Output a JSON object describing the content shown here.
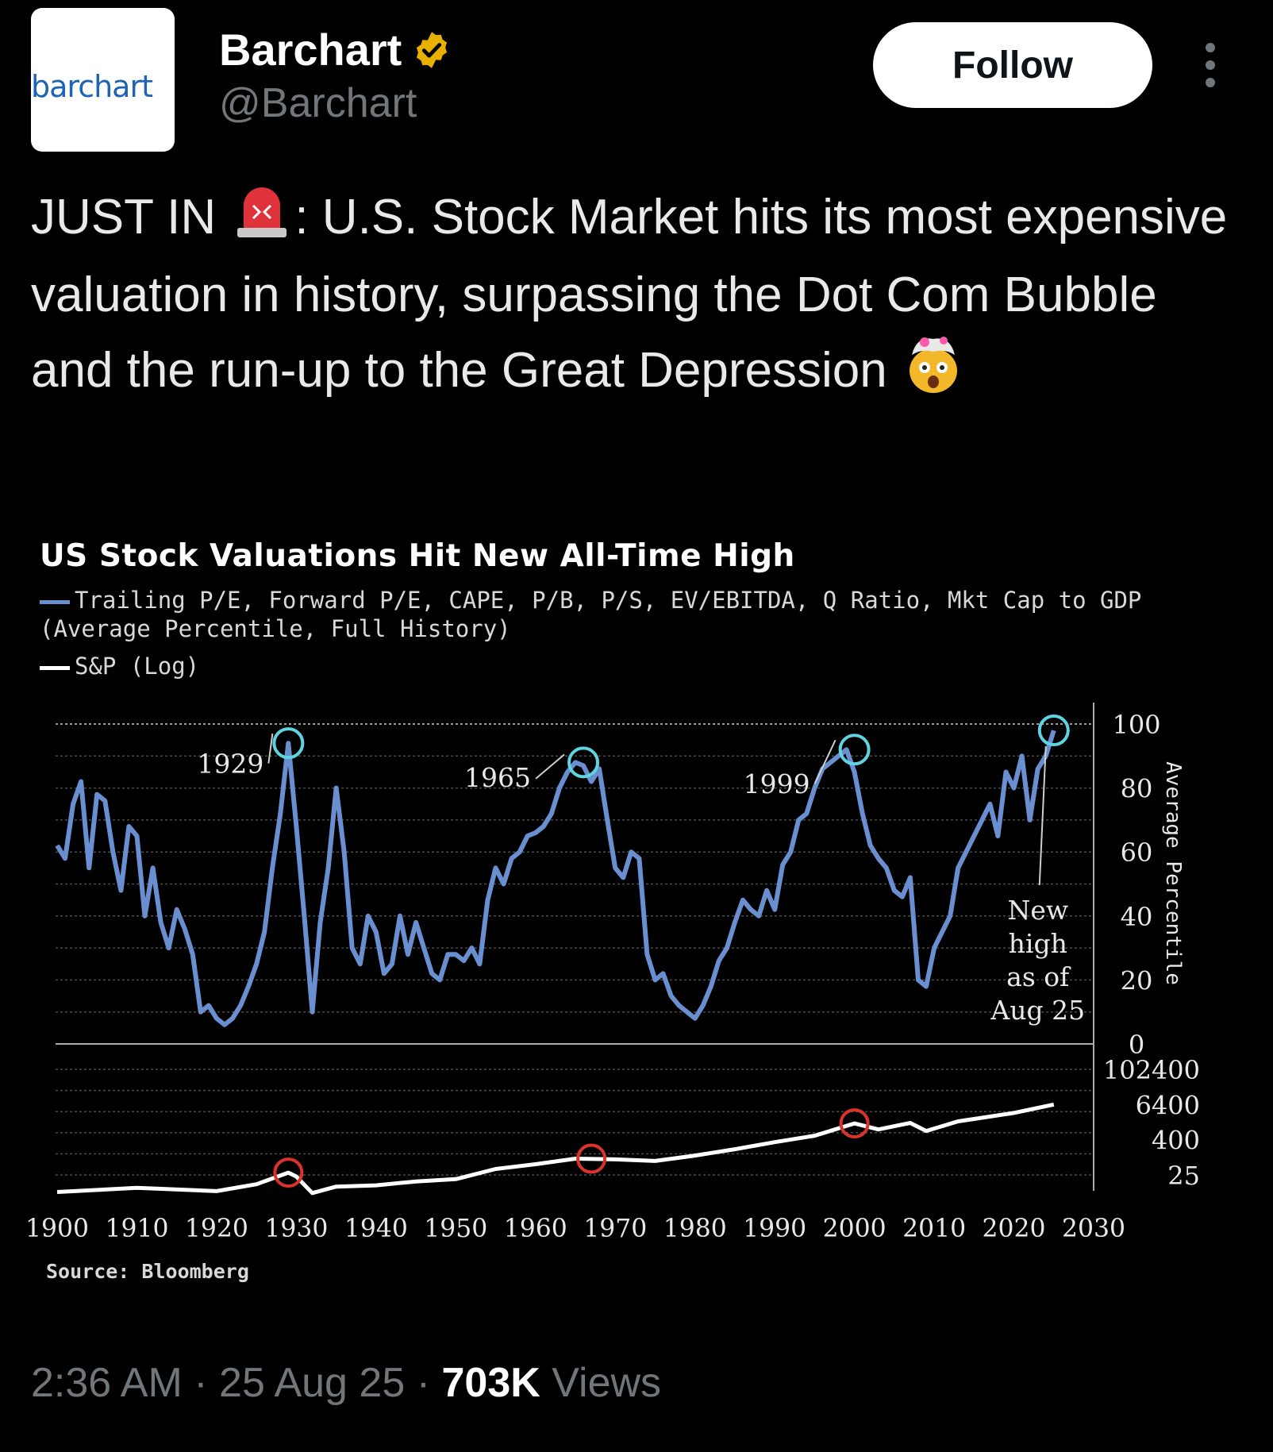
{
  "author": {
    "avatar_text": "barchart",
    "display_name": "Barchart",
    "handle": "@Barchart",
    "verified_icon": "gold-verified-badge",
    "verified_color": "#e8b100"
  },
  "header": {
    "follow_label": "Follow",
    "more_icon": "more-vertical-icon"
  },
  "tweet": {
    "prefix": "JUST IN",
    "siren_emoji": "🚨",
    "body": ": U.S. Stock Market hits its most expensive valuation in history, surpassing the Dot Com Bubble and the run-up to the Great Depression",
    "trailing_emoji": "🤯"
  },
  "footer": {
    "time": "2:36 AM",
    "date": "25 Aug 25",
    "views_count": "703K",
    "views_label": "Views"
  },
  "chart_data": {
    "type": "line",
    "title": "US Stock Valuations Hit New All-Time High",
    "source": "Source: Bloomberg",
    "grid": true,
    "series": [
      {
        "name": "Trailing P/E, Forward P/E, CAPE, P/B, P/S, EV/EBITDA, Q Ratio, Mkt Cap to GDP (Average Percentile, Full History)",
        "color": "#6a8fd0",
        "axis": "Average Percentile",
        "x": [
          1900,
          1901,
          1902,
          1903,
          1904,
          1905,
          1906,
          1907,
          1908,
          1909,
          1910,
          1911,
          1912,
          1913,
          1914,
          1915,
          1916,
          1917,
          1918,
          1919,
          1920,
          1921,
          1922,
          1923,
          1924,
          1925,
          1926,
          1927,
          1928,
          1929,
          1930,
          1931,
          1932,
          1933,
          1934,
          1935,
          1936,
          1937,
          1938,
          1939,
          1940,
          1941,
          1942,
          1943,
          1944,
          1945,
          1946,
          1947,
          1948,
          1949,
          1950,
          1951,
          1952,
          1953,
          1954,
          1955,
          1956,
          1957,
          1958,
          1959,
          1960,
          1961,
          1962,
          1963,
          1964,
          1965,
          1966,
          1967,
          1968,
          1969,
          1970,
          1971,
          1972,
          1973,
          1974,
          1975,
          1976,
          1977,
          1978,
          1979,
          1980,
          1981,
          1982,
          1983,
          1984,
          1985,
          1986,
          1987,
          1988,
          1989,
          1990,
          1991,
          1992,
          1993,
          1994,
          1995,
          1996,
          1997,
          1998,
          1999,
          2000,
          2001,
          2002,
          2003,
          2004,
          2005,
          2006,
          2007,
          2008,
          2009,
          2010,
          2011,
          2012,
          2013,
          2014,
          2015,
          2016,
          2017,
          2018,
          2019,
          2020,
          2021,
          2022,
          2023,
          2024,
          2025
        ],
        "values": [
          62,
          58,
          75,
          82,
          55,
          78,
          76,
          60,
          48,
          68,
          65,
          40,
          55,
          38,
          30,
          42,
          36,
          28,
          10,
          12,
          8,
          6,
          8,
          12,
          18,
          25,
          35,
          55,
          72,
          94,
          68,
          40,
          10,
          38,
          55,
          80,
          60,
          30,
          25,
          40,
          35,
          22,
          25,
          40,
          28,
          38,
          30,
          22,
          20,
          28,
          28,
          26,
          30,
          25,
          45,
          55,
          50,
          58,
          60,
          65,
          66,
          68,
          72,
          80,
          85,
          88,
          87,
          82,
          86,
          70,
          55,
          52,
          60,
          58,
          28,
          20,
          22,
          15,
          12,
          10,
          8,
          12,
          18,
          26,
          30,
          38,
          45,
          42,
          40,
          48,
          42,
          56,
          60,
          70,
          72,
          80,
          86,
          88,
          90,
          92,
          85,
          72,
          62,
          58,
          55,
          48,
          46,
          52,
          20,
          18,
          30,
          35,
          40,
          55,
          60,
          65,
          70,
          75,
          65,
          85,
          80,
          90,
          70,
          86,
          90,
          98
        ]
      },
      {
        "name": "S&P (Log)",
        "color": "#ffffff",
        "axis": "S&P (Log)",
        "x": [
          1900,
          1910,
          1920,
          1925,
          1929,
          1930,
          1932,
          1935,
          1940,
          1945,
          1950,
          1955,
          1960,
          1965,
          1970,
          1975,
          1980,
          1985,
          1990,
          1995,
          2000,
          2003,
          2007,
          2009,
          2013,
          2015,
          2020,
          2025
        ],
        "values": [
          6.5,
          9,
          7,
          12,
          30,
          22,
          6,
          10,
          11,
          15,
          18,
          40,
          58,
          90,
          85,
          75,
          115,
          190,
          330,
          550,
          1450,
          900,
          1500,
          800,
          1700,
          2050,
          3300,
          6400
        ]
      }
    ],
    "annotations": [
      {
        "label": "1929",
        "x": 1929,
        "y": 94
      },
      {
        "label": "1965",
        "x": 1966,
        "y": 88
      },
      {
        "label": "1999",
        "x": 2000,
        "y": 92
      },
      {
        "label": "New high as of Aug 25",
        "x": 2025,
        "y": 98
      }
    ],
    "sp_markers": [
      1929,
      1967,
      2000
    ],
    "x_ticks": [
      "1900",
      "1910",
      "1920",
      "1930",
      "1940",
      "1950",
      "1960",
      "1970",
      "1980",
      "1990",
      "2000",
      "2010",
      "2020",
      "2030"
    ],
    "y_ticks_top": [
      "100",
      "80",
      "60",
      "40",
      "20",
      "0"
    ],
    "y_ticks_bottom": [
      "102400",
      "6400",
      "400",
      "25"
    ],
    "ylabel": "Average Percentile",
    "xlim": [
      1900,
      2030
    ],
    "ylim_top": [
      0,
      100
    ],
    "ylim_bottom": [
      25,
      102400
    ],
    "highlight_color": "#5fd3e0",
    "sp_marker_color": "#d9332b",
    "annotation_new_high": [
      "New",
      "high",
      "as of",
      "Aug 25"
    ]
  }
}
